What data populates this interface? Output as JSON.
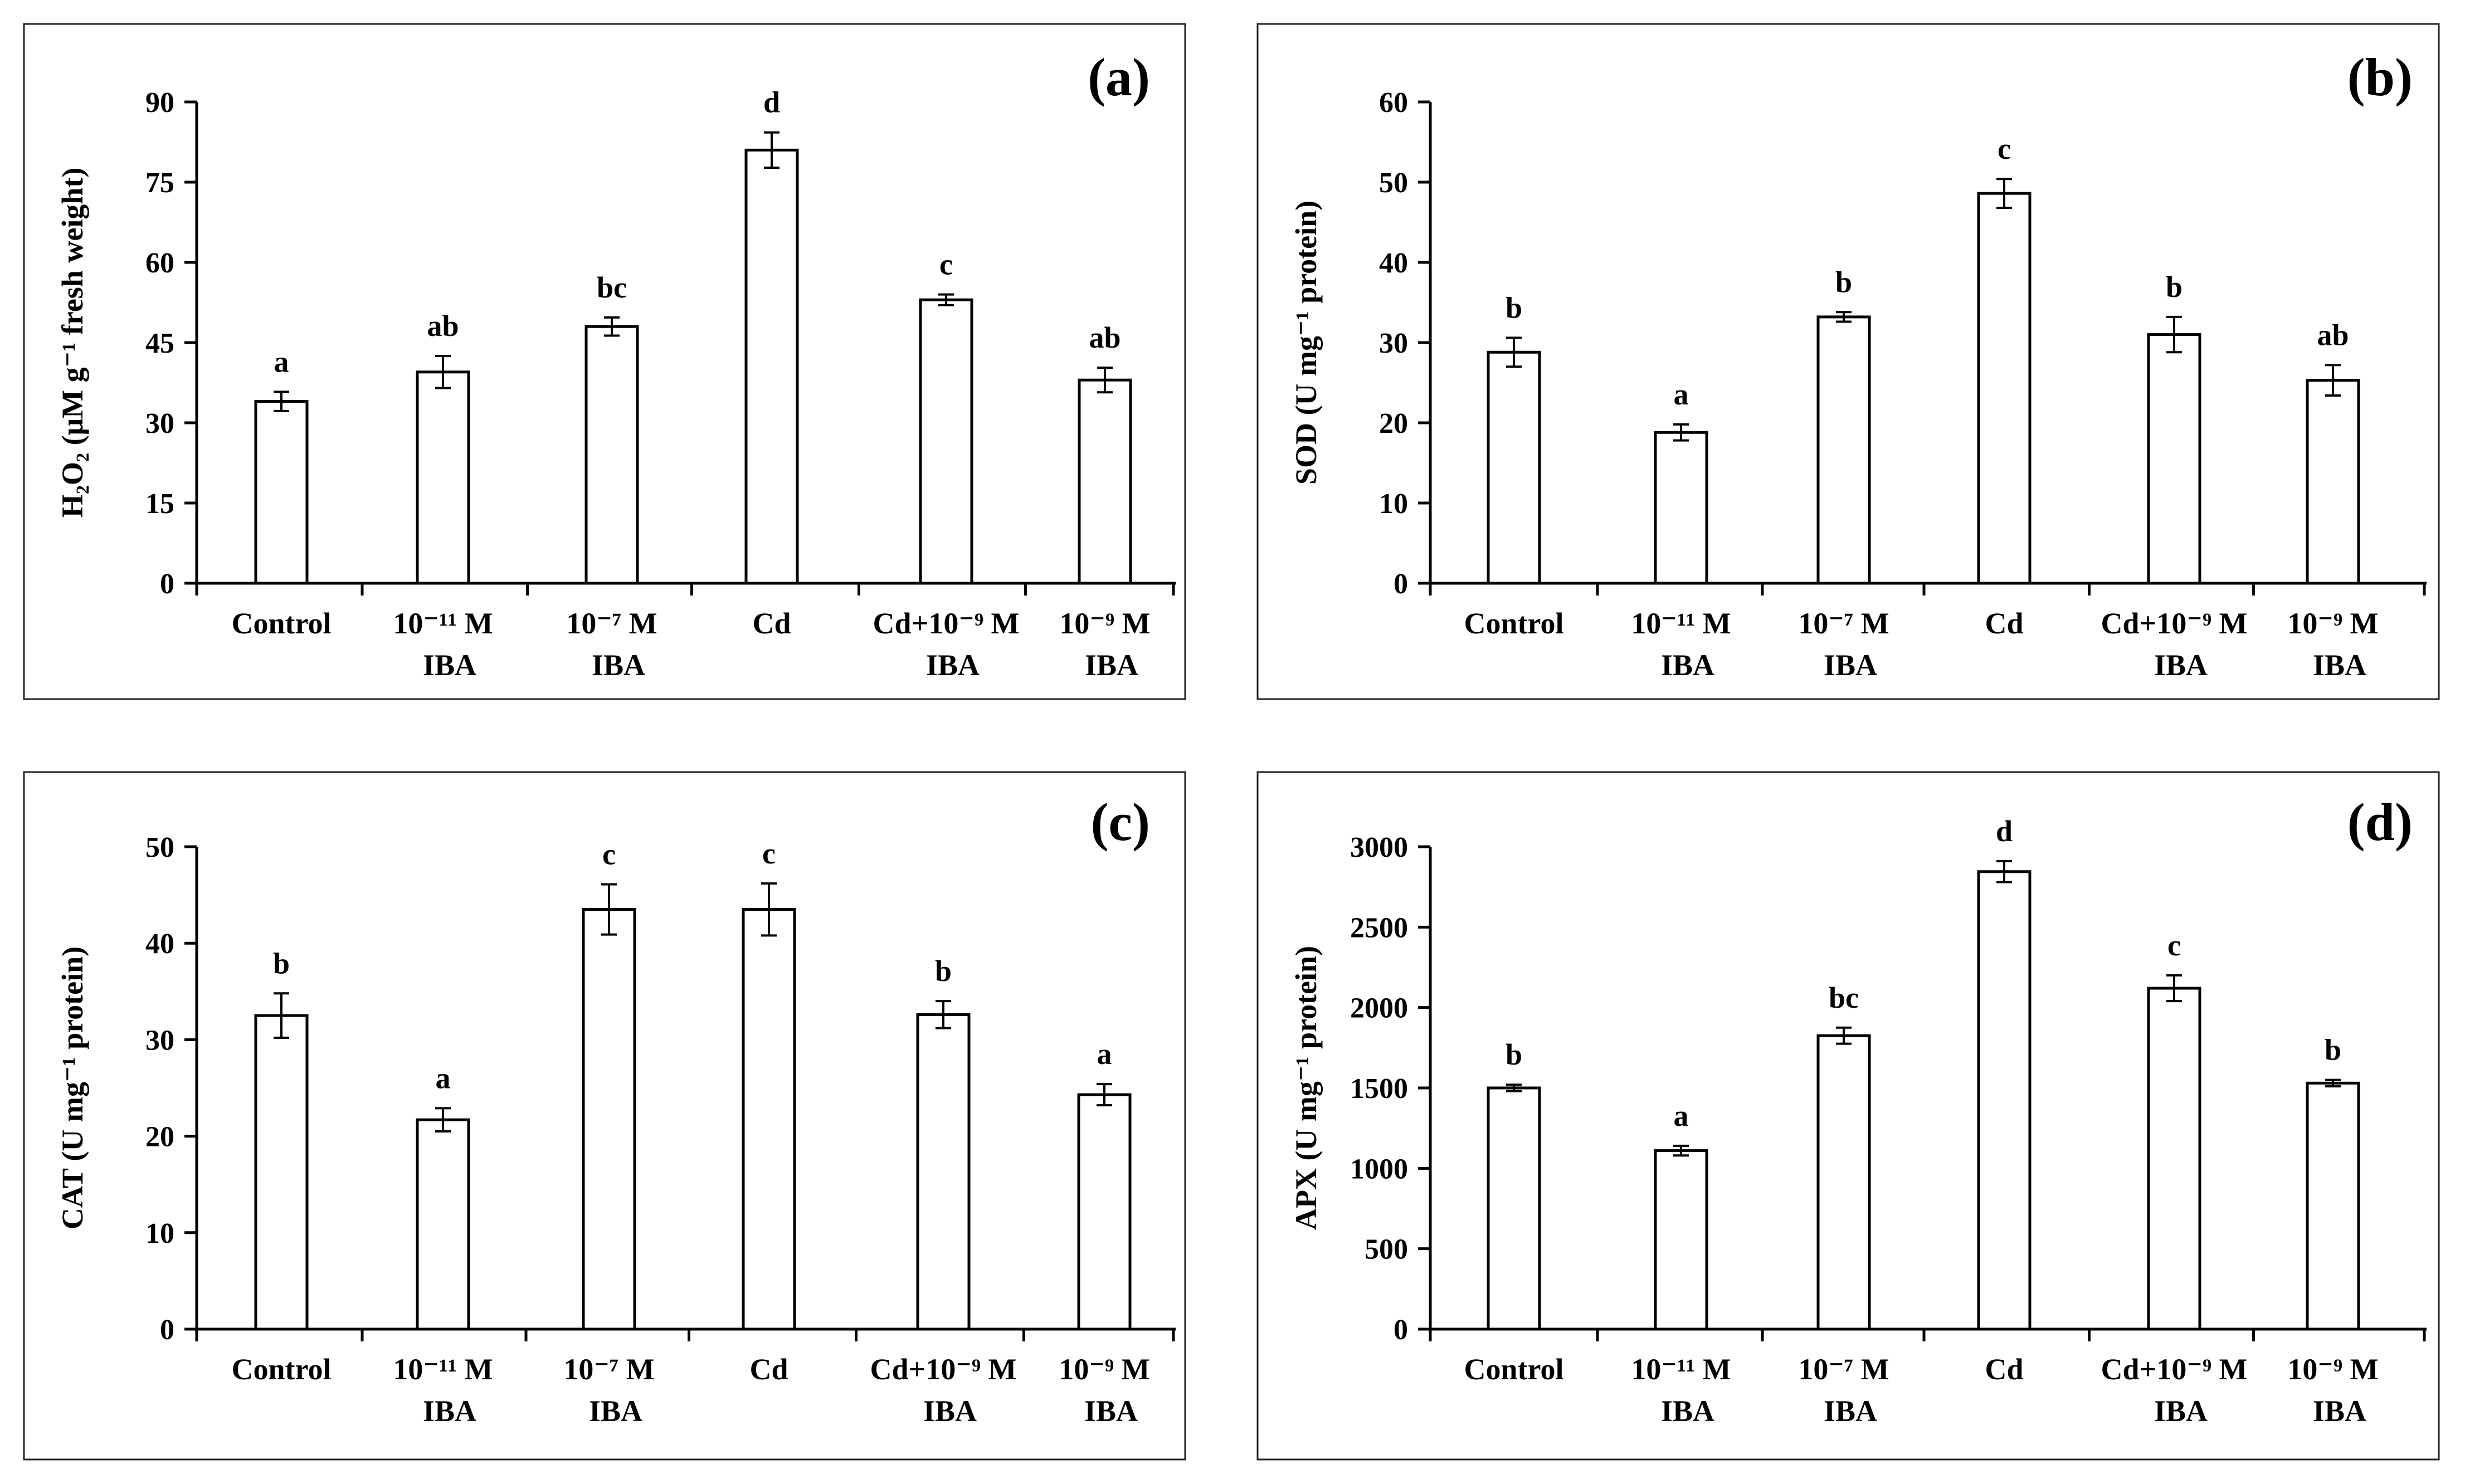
{
  "figure": {
    "background": "#ffffff",
    "bar_fill": "#ffffff",
    "stroke": "#000000"
  },
  "chart_data": [
    {
      "id": "a",
      "type": "bar",
      "panel_label": "(a)",
      "ylabel": "H₂O₂ (μM g⁻¹ fresh weight)",
      "ylim": [
        0,
        90
      ],
      "yticks": [
        0,
        15,
        30,
        45,
        60,
        75,
        90
      ],
      "categories": [
        [
          "Control"
        ],
        [
          "10⁻¹¹ M",
          "IBA"
        ],
        [
          "10⁻⁷ M",
          "IBA"
        ],
        [
          "Cd"
        ],
        [
          "Cd+10⁻⁹ M",
          "IBA"
        ],
        [
          "10⁻⁹ M",
          "IBA"
        ]
      ],
      "values": [
        34,
        39.5,
        48,
        81,
        53,
        38
      ],
      "errors": [
        1.8,
        3,
        1.7,
        3.3,
        1,
        2.3
      ],
      "letters": [
        "a",
        "ab",
        "bc",
        "d",
        "c",
        "ab"
      ]
    },
    {
      "id": "b",
      "type": "bar",
      "panel_label": "(b)",
      "ylabel": "SOD (U mg⁻¹ protein)",
      "ylim": [
        0,
        60
      ],
      "yticks": [
        0,
        10,
        20,
        30,
        40,
        50,
        60
      ],
      "categories": [
        [
          "Control"
        ],
        [
          "10⁻¹¹ M",
          "IBA"
        ],
        [
          "10⁻⁷ M",
          "IBA"
        ],
        [
          "Cd"
        ],
        [
          "Cd+10⁻⁹ M",
          "IBA"
        ],
        [
          "10⁻⁹ M",
          "IBA"
        ]
      ],
      "values": [
        28.8,
        18.8,
        33.2,
        48.6,
        31,
        25.3
      ],
      "errors": [
        1.8,
        1,
        0.6,
        1.8,
        2.2,
        1.9
      ],
      "letters": [
        "b",
        "a",
        "b",
        "c",
        "b",
        "ab"
      ]
    },
    {
      "id": "c",
      "type": "bar",
      "panel_label": "(c)",
      "ylabel": "CAT (U mg⁻¹ protein)",
      "ylim": [
        0,
        50
      ],
      "yticks": [
        0,
        10,
        20,
        30,
        40,
        50
      ],
      "categories": [
        [
          "Control"
        ],
        [
          "10⁻¹¹ M",
          "IBA"
        ],
        [
          "10⁻⁷ M",
          "IBA"
        ],
        [
          "Cd"
        ],
        [
          "Cd+10⁻⁹ M",
          "IBA"
        ],
        [
          "10⁻⁹ M",
          "IBA"
        ]
      ],
      "values": [
        32.5,
        21.7,
        43.5,
        43.5,
        32.6,
        24.3
      ],
      "errors": [
        2.3,
        1.2,
        2.6,
        2.7,
        1.4,
        1.1
      ],
      "letters": [
        "b",
        "a",
        "c",
        "c",
        "b",
        "a"
      ]
    },
    {
      "id": "d",
      "type": "bar",
      "panel_label": "(d)",
      "ylabel": "APX (U mg⁻¹ protein)",
      "ylim": [
        0,
        3000
      ],
      "yticks": [
        0,
        500,
        1000,
        1500,
        2000,
        2500,
        3000
      ],
      "categories": [
        [
          "Control"
        ],
        [
          "10⁻¹¹ M",
          "IBA"
        ],
        [
          "10⁻⁷ M",
          "IBA"
        ],
        [
          "Cd"
        ],
        [
          "Cd+10⁻⁹ M",
          "IBA"
        ],
        [
          "10⁻⁹ M",
          "IBA"
        ]
      ],
      "values": [
        1500,
        1110,
        1825,
        2845,
        2120,
        1530
      ],
      "errors": [
        20,
        30,
        50,
        65,
        80,
        20
      ],
      "letters": [
        "b",
        "a",
        "bc",
        "d",
        "c",
        "b"
      ]
    }
  ]
}
